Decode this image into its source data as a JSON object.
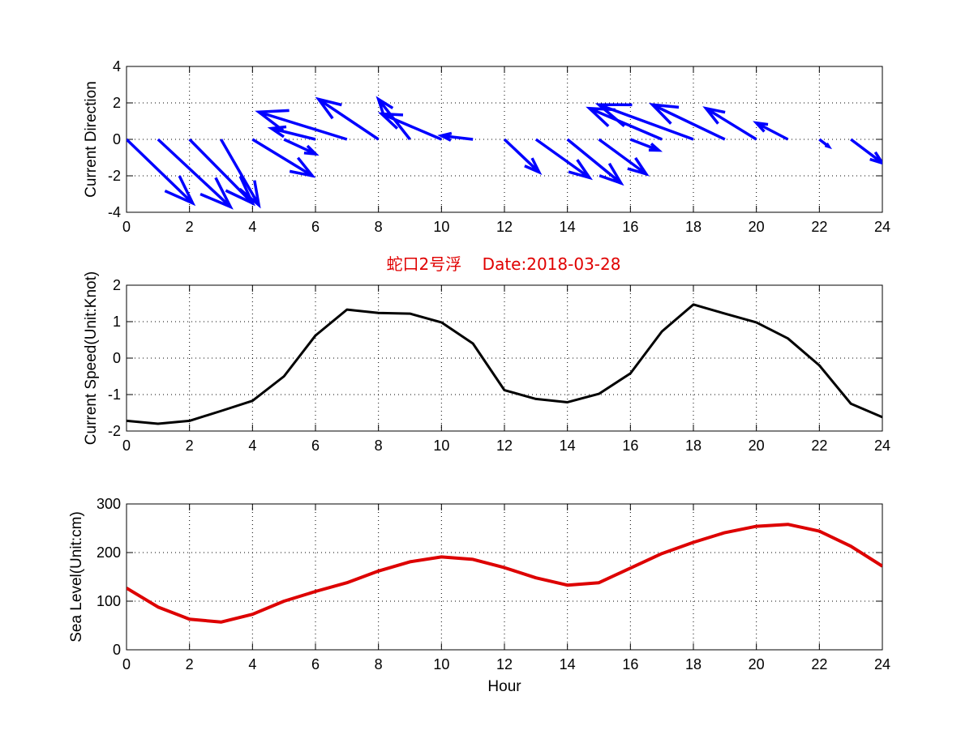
{
  "figure": {
    "title_text": "蛇口2号浮    Date:2018-03-28",
    "title_color": "#e00000"
  },
  "chart_data": [
    {
      "type": "quiver",
      "ylabel": "Current Direction",
      "xlim": [
        0,
        24
      ],
      "ylim": [
        -4,
        4
      ],
      "xticks": [
        0,
        2,
        4,
        6,
        8,
        10,
        12,
        14,
        16,
        18,
        20,
        22,
        24
      ],
      "yticks": [
        -4,
        -2,
        0,
        2,
        4
      ],
      "grid": true,
      "color": "#0000ff",
      "vectors": [
        {
          "x": 0,
          "y": 0,
          "u": 2.1,
          "v": -3.5
        },
        {
          "x": 1,
          "y": 0,
          "u": 2.3,
          "v": -3.7
        },
        {
          "x": 2,
          "y": 0,
          "u": 2.0,
          "v": -3.5
        },
        {
          "x": 3,
          "y": 0,
          "u": 1.2,
          "v": -3.6
        },
        {
          "x": 4,
          "y": 0,
          "u": 1.9,
          "v": -2.0
        },
        {
          "x": 5,
          "y": 0,
          "u": 1.0,
          "v": -0.8
        },
        {
          "x": 6,
          "y": 0,
          "u": -1.4,
          "v": 0.6
        },
        {
          "x": 7,
          "y": 0,
          "u": -2.8,
          "v": 1.5
        },
        {
          "x": 8,
          "y": 0,
          "u": -1.9,
          "v": 2.2
        },
        {
          "x": 9,
          "y": 0,
          "u": -1.0,
          "v": 2.2
        },
        {
          "x": 10,
          "y": 0,
          "u": -1.9,
          "v": 1.4
        },
        {
          "x": 11,
          "y": 0,
          "u": -1.0,
          "v": 0.2
        },
        {
          "x": 12,
          "y": 0,
          "u": 1.1,
          "v": -1.8
        },
        {
          "x": 13,
          "y": 0,
          "u": 1.7,
          "v": -2.1
        },
        {
          "x": 14,
          "y": 0,
          "u": 1.7,
          "v": -2.4
        },
        {
          "x": 15,
          "y": 0,
          "u": 1.5,
          "v": -1.9
        },
        {
          "x": 16,
          "y": 0,
          "u": 0.9,
          "v": -0.6
        },
        {
          "x": 17,
          "y": 0,
          "u": -2.3,
          "v": 1.7
        },
        {
          "x": 18,
          "y": 0,
          "u": -3.0,
          "v": 1.9
        },
        {
          "x": 19,
          "y": 0,
          "u": -2.3,
          "v": 1.9
        },
        {
          "x": 20,
          "y": 0,
          "u": -1.6,
          "v": 1.7
        },
        {
          "x": 21,
          "y": 0,
          "u": -1.0,
          "v": 0.9
        },
        {
          "x": 22,
          "y": 0,
          "u": 0.3,
          "v": -0.4
        },
        {
          "x": 23,
          "y": 0,
          "u": 1.0,
          "v": -1.3
        }
      ]
    },
    {
      "type": "line",
      "ylabel": "Current Speed(Unit:Knot)",
      "xlim": [
        0,
        24
      ],
      "ylim": [
        -2,
        2
      ],
      "xticks": [
        0,
        2,
        4,
        6,
        8,
        10,
        12,
        14,
        16,
        18,
        20,
        22,
        24
      ],
      "yticks": [
        -2,
        -1,
        0,
        1,
        2
      ],
      "grid": true,
      "color": "#000000",
      "series": [
        {
          "x": [
            0,
            1,
            2,
            3,
            4,
            5,
            6,
            7,
            8,
            9,
            10,
            11,
            12,
            13,
            14,
            15,
            16,
            17,
            18,
            19,
            20,
            21,
            22,
            23,
            24
          ],
          "values": [
            -1.72,
            -1.8,
            -1.72,
            -1.45,
            -1.17,
            -0.5,
            0.62,
            1.33,
            1.24,
            1.22,
            0.98,
            0.4,
            -0.88,
            -1.12,
            -1.21,
            -0.98,
            -0.42,
            0.73,
            1.47,
            1.22,
            0.98,
            0.54,
            -0.2,
            -1.25,
            -1.62
          ]
        }
      ]
    },
    {
      "type": "line",
      "xlabel": "Hour",
      "ylabel": "Sea Level(Unit:cm)",
      "xlim": [
        0,
        24
      ],
      "ylim": [
        0,
        300
      ],
      "xticks": [
        0,
        2,
        4,
        6,
        8,
        10,
        12,
        14,
        16,
        18,
        20,
        22,
        24
      ],
      "yticks": [
        0,
        100,
        200,
        300
      ],
      "grid": true,
      "color": "#dd0000",
      "series": [
        {
          "x": [
            0,
            1,
            2,
            3,
            4,
            5,
            6,
            7,
            8,
            9,
            10,
            11,
            12,
            13,
            14,
            15,
            16,
            17,
            18,
            19,
            20,
            21,
            22,
            23,
            24
          ],
          "values": [
            127,
            88,
            63,
            57,
            73,
            100,
            120,
            138,
            162,
            181,
            191,
            186,
            169,
            148,
            133,
            138,
            168,
            198,
            221,
            241,
            254,
            258,
            244,
            213,
            172
          ]
        }
      ]
    }
  ]
}
